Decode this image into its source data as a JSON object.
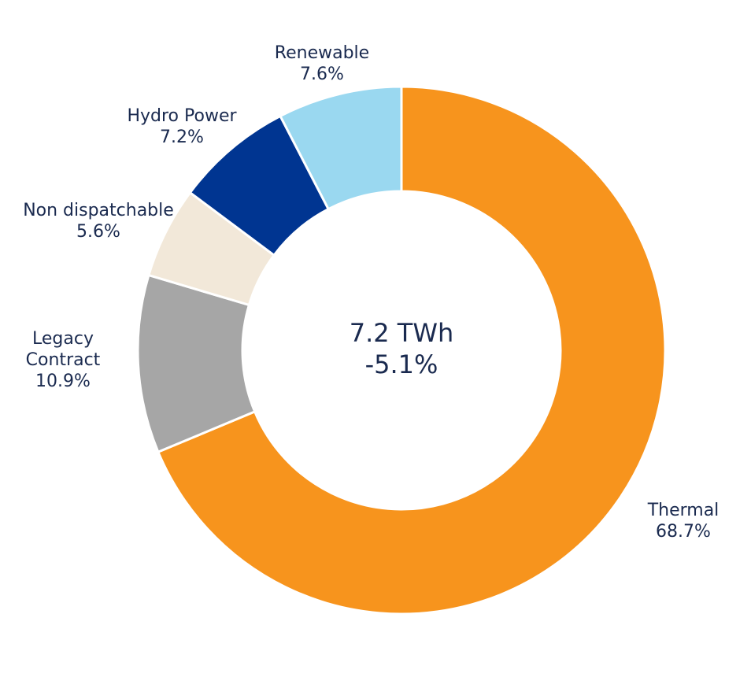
{
  "chart_data": {
    "type": "pie",
    "style": "donut",
    "center": {
      "line1": "7.2 TWh",
      "line2": "-5.1%"
    },
    "slices": [
      {
        "name": "Thermal",
        "label_lines": [
          "Thermal"
        ],
        "value_label": "68.7%",
        "value": 68.7,
        "color": "#f7941d"
      },
      {
        "name": "Legacy Contract",
        "label_lines": [
          "Legacy",
          "Contract"
        ],
        "value_label": "10.9%",
        "value": 10.9,
        "color": "#a6a6a6"
      },
      {
        "name": "Non dispatchable",
        "label_lines": [
          "Non dispatchable"
        ],
        "value_label": "5.6%",
        "value": 5.6,
        "color": "#f2e8d9"
      },
      {
        "name": "Hydro Power",
        "label_lines": [
          "Hydro Power"
        ],
        "value_label": "7.2%",
        "value": 7.2,
        "color": "#003591"
      },
      {
        "name": "Renewable",
        "label_lines": [
          "Renewable"
        ],
        "value_label": "7.6%",
        "value": 7.6,
        "color": "#9ad8f0"
      }
    ]
  }
}
